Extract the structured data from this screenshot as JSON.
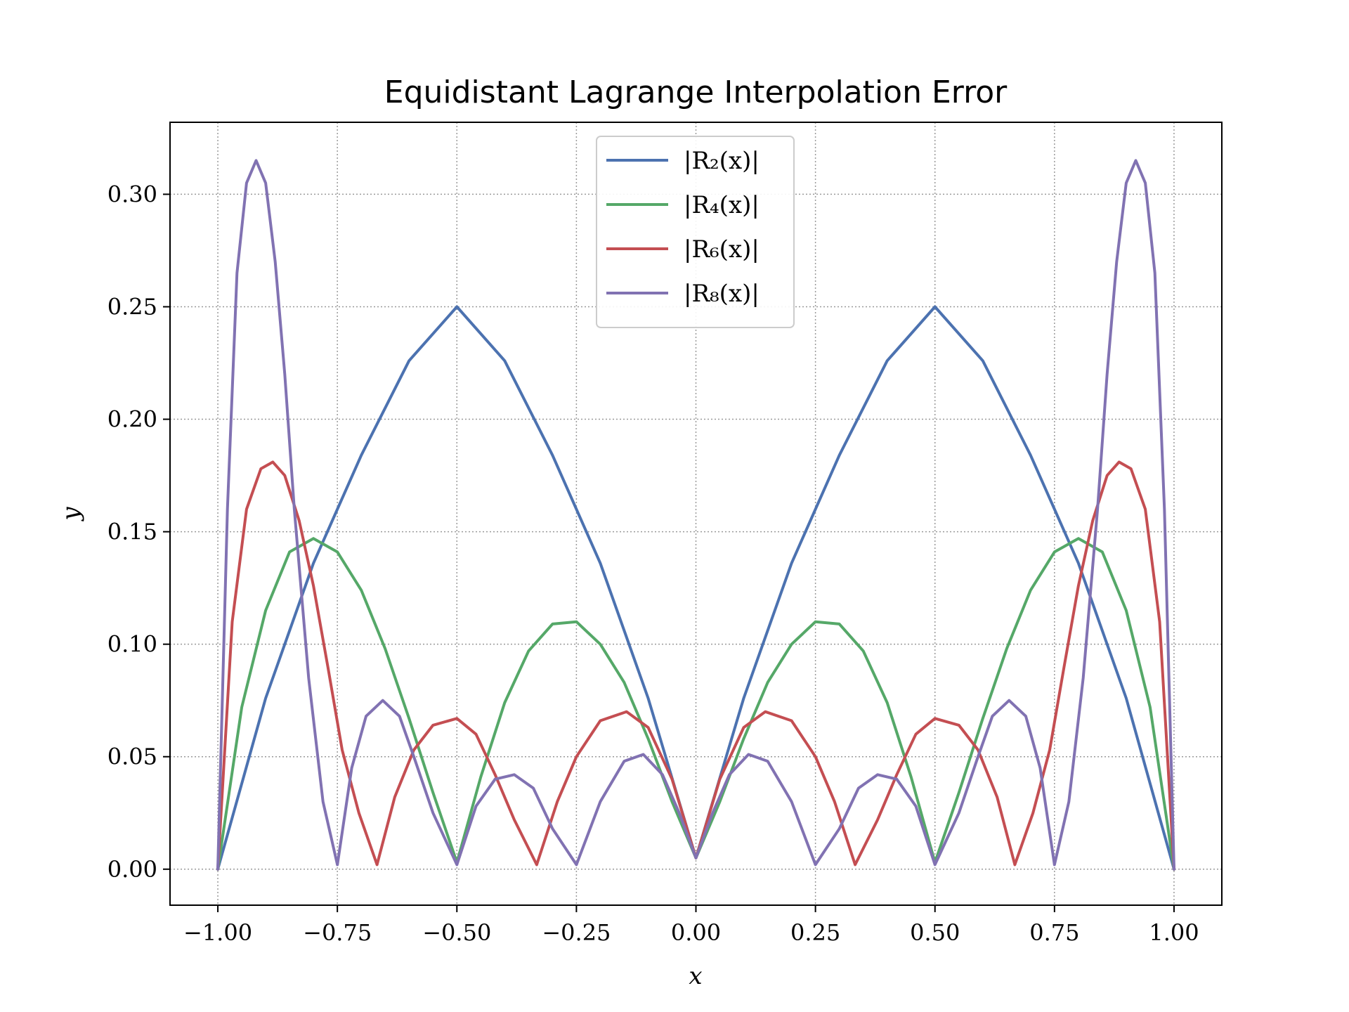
{
  "chart_data": {
    "type": "line",
    "title": "Equidistant Lagrange Interpolation Error",
    "xlabel": "x",
    "ylabel": "y",
    "xlim": [
      -1.1,
      1.1
    ],
    "ylim": [
      -0.016,
      0.332
    ],
    "xticks": [
      -1.0,
      -0.75,
      -0.5,
      -0.25,
      0.0,
      0.25,
      0.5,
      0.75,
      1.0
    ],
    "xtick_labels": [
      "−1.00",
      "−0.75",
      "−0.50",
      "−0.25",
      "0.00",
      "0.25",
      "0.50",
      "0.75",
      "1.00"
    ],
    "yticks": [
      0.0,
      0.05,
      0.1,
      0.15,
      0.2,
      0.25,
      0.3
    ],
    "ytick_labels": [
      "0.00",
      "0.05",
      "0.10",
      "0.15",
      "0.20",
      "0.25",
      "0.30"
    ],
    "grid": true,
    "legend_position": "top-center",
    "series": [
      {
        "name": "|R₂(x)|",
        "color": "#4c72b0",
        "x": [
          -1.0,
          -0.9,
          -0.8,
          -0.7,
          -0.6,
          -0.5,
          -0.4,
          -0.3,
          -0.2,
          -0.1,
          0.0,
          0.1,
          0.2,
          0.3,
          0.4,
          0.5,
          0.6,
          0.7,
          0.8,
          0.9,
          1.0
        ],
        "y": [
          0.0,
          0.076,
          0.136,
          0.184,
          0.226,
          0.25,
          0.226,
          0.184,
          0.136,
          0.076,
          0.005,
          0.076,
          0.136,
          0.184,
          0.226,
          0.25,
          0.226,
          0.184,
          0.136,
          0.076,
          0.0
        ]
      },
      {
        "name": "|R₄(x)|",
        "color": "#55a868",
        "x": [
          -1.0,
          -0.95,
          -0.9,
          -0.85,
          -0.8,
          -0.75,
          -0.7,
          -0.65,
          -0.6,
          -0.55,
          -0.5,
          -0.45,
          -0.4,
          -0.35,
          -0.3,
          -0.25,
          -0.2,
          -0.15,
          -0.1,
          -0.05,
          0.0,
          0.05,
          0.1,
          0.15,
          0.2,
          0.25,
          0.3,
          0.35,
          0.4,
          0.45,
          0.5,
          0.55,
          0.6,
          0.65,
          0.7,
          0.75,
          0.8,
          0.85,
          0.9,
          0.95,
          1.0
        ],
        "y": [
          0.0,
          0.072,
          0.115,
          0.141,
          0.147,
          0.141,
          0.124,
          0.098,
          0.067,
          0.034,
          0.003,
          0.041,
          0.074,
          0.097,
          0.109,
          0.11,
          0.1,
          0.083,
          0.058,
          0.03,
          0.005,
          0.03,
          0.058,
          0.083,
          0.1,
          0.11,
          0.109,
          0.097,
          0.074,
          0.041,
          0.003,
          0.034,
          0.067,
          0.098,
          0.124,
          0.141,
          0.147,
          0.141,
          0.115,
          0.072,
          0.0
        ]
      },
      {
        "name": "|R₆(x)|",
        "color": "#c44e52",
        "x": [
          -1.0,
          -0.97,
          -0.94,
          -0.91,
          -0.885,
          -0.86,
          -0.83,
          -0.8,
          -0.77,
          -0.74,
          -0.705,
          -0.667,
          -0.63,
          -0.59,
          -0.55,
          -0.5,
          -0.46,
          -0.42,
          -0.38,
          -0.333,
          -0.29,
          -0.25,
          -0.2,
          -0.145,
          -0.1,
          -0.05,
          0.0,
          0.05,
          0.1,
          0.145,
          0.2,
          0.25,
          0.29,
          0.333,
          0.38,
          0.42,
          0.46,
          0.5,
          0.55,
          0.59,
          0.63,
          0.667,
          0.705,
          0.74,
          0.77,
          0.8,
          0.83,
          0.86,
          0.885,
          0.91,
          0.94,
          0.97,
          1.0
        ],
        "y": [
          0.0,
          0.11,
          0.16,
          0.178,
          0.181,
          0.175,
          0.155,
          0.126,
          0.09,
          0.053,
          0.025,
          0.002,
          0.032,
          0.053,
          0.064,
          0.067,
          0.06,
          0.042,
          0.022,
          0.002,
          0.03,
          0.05,
          0.066,
          0.07,
          0.063,
          0.04,
          0.005,
          0.04,
          0.063,
          0.07,
          0.066,
          0.05,
          0.03,
          0.002,
          0.022,
          0.042,
          0.06,
          0.067,
          0.064,
          0.053,
          0.032,
          0.002,
          0.025,
          0.053,
          0.09,
          0.126,
          0.155,
          0.175,
          0.181,
          0.178,
          0.16,
          0.11,
          0.0
        ]
      },
      {
        "name": "|R₈(x)|",
        "color": "#8172b2",
        "x": [
          -1.0,
          -0.98,
          -0.96,
          -0.94,
          -0.92,
          -0.9,
          -0.88,
          -0.86,
          -0.84,
          -0.81,
          -0.78,
          -0.75,
          -0.72,
          -0.69,
          -0.655,
          -0.62,
          -0.59,
          -0.55,
          -0.5,
          -0.46,
          -0.42,
          -0.38,
          -0.34,
          -0.3,
          -0.25,
          -0.2,
          -0.15,
          -0.11,
          -0.07,
          -0.035,
          0.0,
          0.035,
          0.07,
          0.11,
          0.15,
          0.2,
          0.25,
          0.3,
          0.34,
          0.38,
          0.42,
          0.46,
          0.5,
          0.55,
          0.59,
          0.62,
          0.655,
          0.69,
          0.72,
          0.75,
          0.78,
          0.81,
          0.84,
          0.86,
          0.88,
          0.9,
          0.92,
          0.94,
          0.96,
          0.98,
          1.0
        ],
        "y": [
          0.0,
          0.16,
          0.265,
          0.305,
          0.315,
          0.305,
          0.27,
          0.22,
          0.16,
          0.085,
          0.03,
          0.002,
          0.045,
          0.068,
          0.075,
          0.068,
          0.05,
          0.025,
          0.002,
          0.028,
          0.04,
          0.042,
          0.036,
          0.018,
          0.002,
          0.03,
          0.048,
          0.051,
          0.042,
          0.025,
          0.005,
          0.025,
          0.042,
          0.051,
          0.048,
          0.03,
          0.002,
          0.018,
          0.036,
          0.042,
          0.04,
          0.028,
          0.002,
          0.025,
          0.05,
          0.068,
          0.075,
          0.068,
          0.045,
          0.002,
          0.03,
          0.085,
          0.16,
          0.22,
          0.27,
          0.305,
          0.315,
          0.305,
          0.265,
          0.16,
          0.0
        ]
      }
    ]
  }
}
